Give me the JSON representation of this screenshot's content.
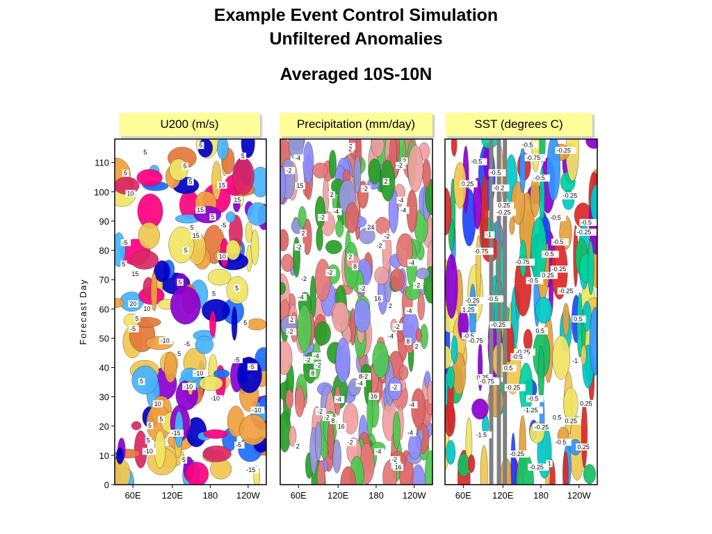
{
  "titles": {
    "line1": "Example Event Control Simulation",
    "line2": "Unfiltered Anomalies",
    "line3": "Averaged 10S-10N"
  },
  "chart_data": [
    {
      "type": "heatmap",
      "title": "U200 (m/s)",
      "ylabel": "Forecast Day",
      "xlabel": "",
      "ylim": [
        0,
        118
      ],
      "yticks": [
        "0",
        "10",
        "20",
        "30",
        "40",
        "50",
        "60",
        "70",
        "80",
        "90",
        "100",
        "110"
      ],
      "xticks": [
        "60E",
        "120E",
        "180",
        "120W"
      ],
      "contour_labels": [
        "5",
        "5",
        "5",
        "5",
        "5",
        "5",
        "15",
        "10",
        "15",
        "15",
        "5",
        "-5",
        "5",
        "15",
        "-5",
        "5",
        "10",
        "5",
        "15",
        "5",
        "5",
        "5",
        "20",
        "10",
        "5",
        "5",
        "-5",
        "-10",
        "-5",
        "5",
        "-5",
        "-5",
        "-10",
        "5",
        "-10",
        "-10",
        "10",
        "-10",
        "5",
        "5",
        "-15",
        "5",
        "-5",
        "-10",
        "5",
        "-15"
      ],
      "colors": [
        "#0000c8",
        "#1e6eff",
        "#46b4ff",
        "#f0e664",
        "#f0c850",
        "#f0a040",
        "#e6783c",
        "#dc2864",
        "#ff0080",
        "#8c00d2"
      ]
    },
    {
      "type": "heatmap",
      "title": "Precipitation (mm/day)",
      "ylabel": "",
      "xlabel": "",
      "ylim": [
        0,
        118
      ],
      "xticks": [
        "60E",
        "120E",
        "180",
        "120W"
      ],
      "contour_labels": [
        "-2",
        "2",
        "-4",
        "2",
        "-2",
        "-2",
        "2",
        "15",
        "-2",
        "2",
        "-4",
        "-4",
        "-4",
        "-2",
        "24",
        "2",
        "-2",
        "-2",
        "-2",
        "2",
        "-4",
        "8",
        "-2",
        "-2",
        "-2",
        "-2",
        "-4",
        "16",
        "2",
        "-4",
        "2",
        "-2",
        "-2",
        "-4",
        "8",
        "2",
        "-4",
        "-2",
        "-2",
        "8",
        "8-2",
        "-4",
        "-2",
        "16",
        "-4",
        "-4",
        "-2",
        "-2",
        "8",
        "16",
        "-4",
        "-2",
        "2",
        "-4",
        "-2",
        "-2",
        "16"
      ],
      "colors": [
        "#f0a0a0",
        "#e67878",
        "#dc6464",
        "#9696dc",
        "#8c8cff",
        "#50c850",
        "#28a028"
      ]
    },
    {
      "type": "heatmap",
      "title": "SST (degrees C)",
      "ylabel": "",
      "xlabel": "",
      "ylim": [
        0,
        118
      ],
      "xticks": [
        "60E",
        "120E",
        "180",
        "120W"
      ],
      "contour_labels": [
        "-0.5",
        "-0.25",
        "-0.75",
        "-0.5",
        "-0.5",
        "-0.5",
        "0.25",
        "-0.2",
        "-0.25",
        "0.25",
        "-0.25",
        "-0.5",
        "-0.5",
        "-0.25",
        "-1",
        "-0.5",
        "-0.75",
        "-0.5",
        "-0.75",
        "-0.25",
        "0.25",
        "-0.5",
        "-0.25",
        "-0.5",
        "-0.25",
        "1.25",
        "0.5",
        "-0.25",
        "0.5",
        "-0.5",
        "-0.75",
        "-0.25",
        "-0.5",
        "-1",
        "0.5",
        "0.25",
        "-0.75",
        "-0.25",
        "-0.5",
        "0.25",
        "-1.25",
        "0.5",
        "0.25",
        "-0.25",
        "-1.5",
        "-0.5",
        "0.25",
        "-0.25",
        "1",
        "-0.25"
      ],
      "colors": [
        "#1e46ff",
        "#3296ff",
        "#00c8c8",
        "#00d2a0",
        "#14be64",
        "#f0e664",
        "#f0c850",
        "#e6a03c",
        "#dc2828",
        "#8c00d2",
        "#808080"
      ]
    }
  ]
}
